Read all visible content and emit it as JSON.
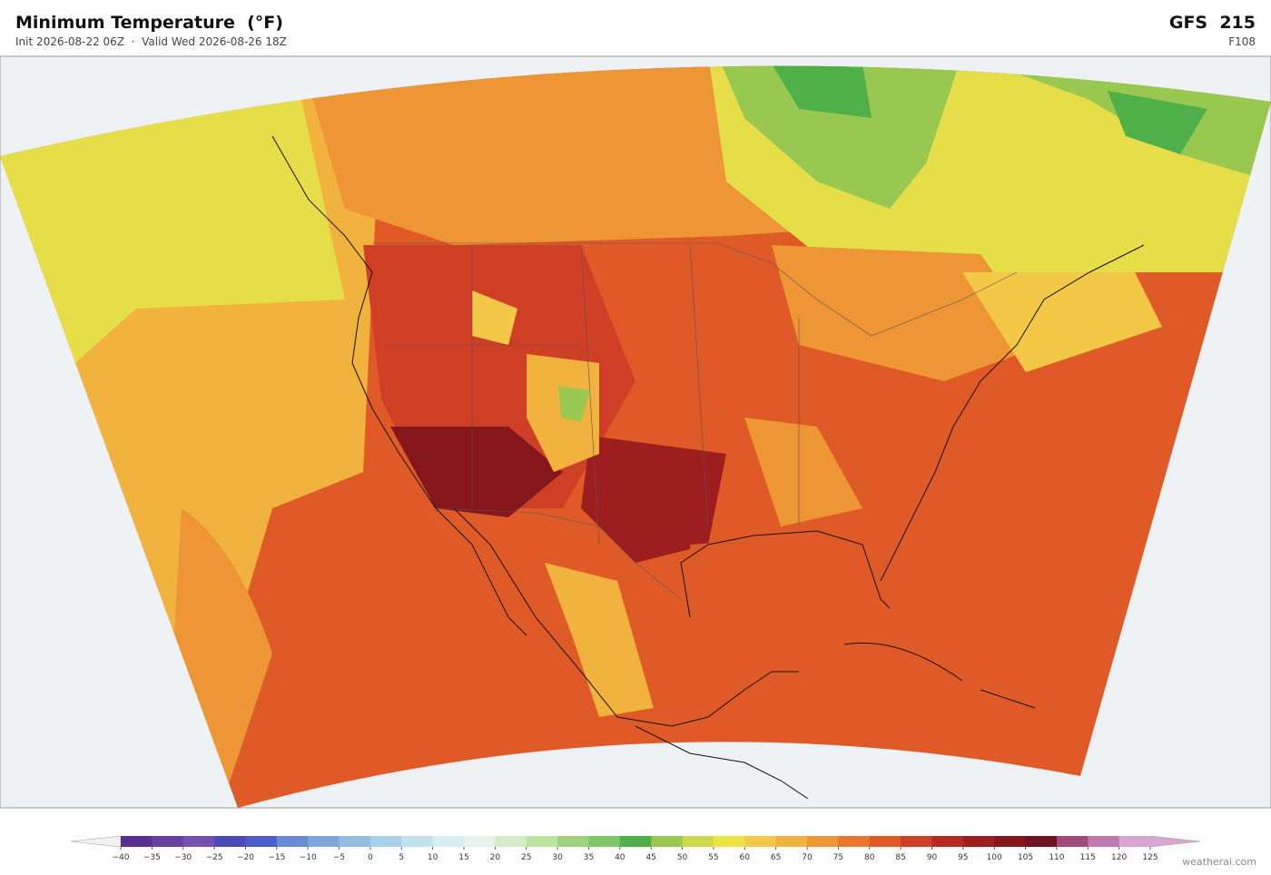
{
  "header": {
    "title": "Minimum Temperature  (°F)",
    "subtitle": "Init 2026-08-22 06Z  ·  Valid Wed 2026-08-26 18Z",
    "model": "GFS  215",
    "forecast_hour": "F108"
  },
  "colorbar": {
    "ticks": [
      {
        "value": -40,
        "label": "−40"
      },
      {
        "value": -35,
        "label": "−35"
      },
      {
        "value": -30,
        "label": "−30"
      },
      {
        "value": -25,
        "label": "−25"
      },
      {
        "value": -20,
        "label": "−20"
      },
      {
        "value": -15,
        "label": "−15"
      },
      {
        "value": -10,
        "label": "−10"
      },
      {
        "value": -5,
        "label": "−5"
      },
      0,
      5,
      10,
      15,
      20,
      25,
      30,
      35,
      40,
      45,
      50,
      55,
      60,
      65,
      70,
      75,
      80,
      85,
      90,
      95,
      100,
      105,
      110,
      115,
      120,
      125
    ],
    "colors": [
      "#5a2d91",
      "#6a3da0",
      "#7450b0",
      "#4b4ab8",
      "#4a5fcc",
      "#6a8ad8",
      "#7fa6dc",
      "#93bee2",
      "#a9d2ea",
      "#c2e2ef",
      "#d7eef2",
      "#e6f3ea",
      "#d4ecc8",
      "#bce3a0",
      "#9fd47e",
      "#7fc766",
      "#4fb04a",
      "#98c850",
      "#cdd94a",
      "#ece440",
      "#f2c846",
      "#f2b23e",
      "#ee9535",
      "#e87830",
      "#e05a28",
      "#cf3f25",
      "#b62a22",
      "#9e1e1f",
      "#84161c",
      "#6e1220",
      "#a04a7a",
      "#c07ab0",
      "#d8a6d0"
    ],
    "under_color": "#f2f2f4",
    "over_color": "#d8a6d0"
  },
  "credit": "weatherai.com"
}
